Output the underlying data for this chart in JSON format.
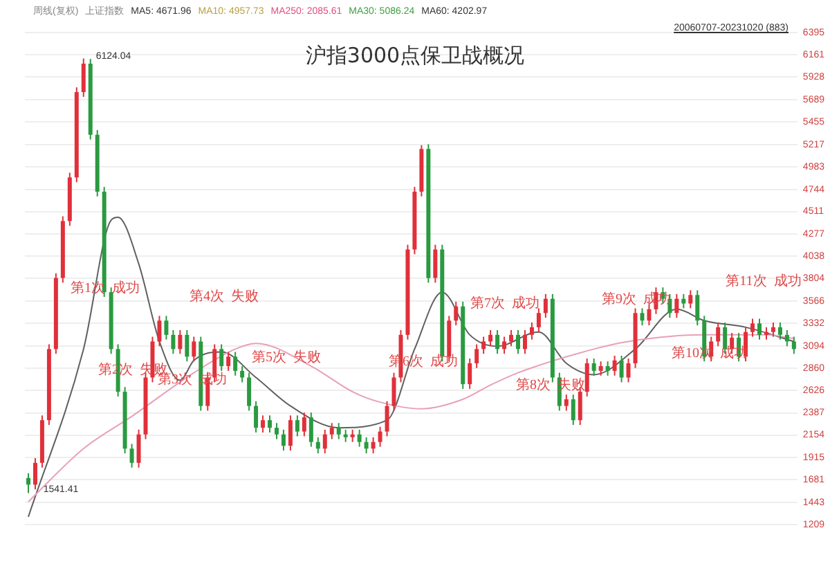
{
  "chart_data": {
    "type": "candlestick",
    "title": "沪指3000点保卫战概况",
    "categories": [
      null,
      null,
      null,
      null,
      null,
      null,
      null,
      null,
      null,
      null,
      null,
      null,
      null,
      null,
      null,
      null,
      null,
      null,
      null,
      null,
      null,
      null,
      null,
      null,
      null,
      null,
      null,
      null,
      null,
      null,
      null,
      null,
      null,
      null,
      null,
      null,
      null,
      null,
      null,
      null,
      null,
      null,
      null,
      null,
      null,
      null,
      null,
      null,
      null,
      null,
      null,
      null,
      null,
      null,
      null,
      null,
      null,
      null,
      null,
      null,
      null,
      null,
      null,
      null,
      null,
      null,
      null,
      null,
      null,
      null,
      null,
      null,
      null,
      null,
      null,
      null,
      null,
      null,
      null,
      null,
      null,
      null,
      null,
      null,
      null,
      null,
      null,
      null,
      null,
      null,
      null,
      null,
      null,
      null,
      null,
      null,
      null,
      null,
      null,
      null,
      null,
      null,
      null,
      null,
      null,
      null,
      null,
      null,
      null,
      null,
      null,
      null
    ],
    "ohlc": [
      [
        1700,
        1750,
        1541.41,
        1630
      ],
      [
        1630,
        1910,
        1580,
        1860
      ],
      [
        1860,
        2360,
        1810,
        2310
      ],
      [
        2310,
        3110,
        2260,
        3060
      ],
      [
        3060,
        3860,
        3010,
        3810
      ],
      [
        3810,
        4460,
        3760,
        4410
      ],
      [
        4410,
        4920,
        4360,
        4870
      ],
      [
        4870,
        5820,
        4820,
        5770
      ],
      [
        5770,
        6124.04,
        5720,
        6070
      ],
      [
        6070,
        6120,
        5270,
        5320
      ],
      [
        5320,
        5370,
        4670,
        4720
      ],
      [
        4720,
        4770,
        3610,
        3660
      ],
      [
        3660,
        3710,
        3010,
        3060
      ],
      [
        3060,
        3110,
        2560,
        2610
      ],
      [
        2610,
        2660,
        1960,
        2010
      ],
      [
        2010,
        2060,
        1810,
        1860
      ],
      [
        1860,
        2210,
        1810,
        2160
      ],
      [
        2160,
        2810,
        2110,
        2760
      ],
      [
        2760,
        3190,
        2710,
        3140
      ],
      [
        3140,
        3410,
        3090,
        3360
      ],
      [
        3360,
        3410,
        3160,
        3210
      ],
      [
        3210,
        3260,
        3010,
        3060
      ],
      [
        3060,
        3260,
        3010,
        3210
      ],
      [
        3210,
        3260,
        2930,
        2980
      ],
      [
        2980,
        3190,
        2930,
        3140
      ],
      [
        3140,
        3190,
        2410,
        2460
      ],
      [
        2460,
        2810,
        2410,
        2760
      ],
      [
        2760,
        3110,
        2710,
        3060
      ],
      [
        3060,
        3110,
        2830,
        2880
      ],
      [
        2880,
        3030,
        2830,
        2980
      ],
      [
        2980,
        3030,
        2780,
        2830
      ],
      [
        2830,
        2880,
        2710,
        2760
      ],
      [
        2760,
        2810,
        2410,
        2460
      ],
      [
        2460,
        2510,
        2180,
        2230
      ],
      [
        2230,
        2360,
        2180,
        2310
      ],
      [
        2310,
        2360,
        2180,
        2230
      ],
      [
        2230,
        2280,
        2110,
        2160
      ],
      [
        2160,
        2210,
        1990,
        2040
      ],
      [
        2040,
        2360,
        1990,
        2310
      ],
      [
        2310,
        2360,
        2140,
        2190
      ],
      [
        2190,
        2390,
        2140,
        2340
      ],
      [
        2340,
        2390,
        2030,
        2080
      ],
      [
        2080,
        2130,
        1960,
        2010
      ],
      [
        2010,
        2210,
        1960,
        2160
      ],
      [
        2160,
        2280,
        2110,
        2230
      ],
      [
        2230,
        2280,
        2110,
        2160
      ],
      [
        2160,
        2210,
        2080,
        2130
      ],
      [
        2130,
        2210,
        2080,
        2160
      ],
      [
        2160,
        2210,
        2030,
        2080
      ],
      [
        2080,
        2130,
        1960,
        2010
      ],
      [
        2010,
        2130,
        1960,
        2080
      ],
      [
        2080,
        2240,
        2030,
        2190
      ],
      [
        2190,
        2510,
        2140,
        2460
      ],
      [
        2460,
        2810,
        2410,
        2760
      ],
      [
        2760,
        3260,
        2710,
        3210
      ],
      [
        3210,
        4160,
        3160,
        4110
      ],
      [
        4110,
        4770,
        4060,
        4720
      ],
      [
        4720,
        5210,
        4670,
        5170
      ],
      [
        5170,
        5220,
        3760,
        3810
      ],
      [
        3810,
        4160,
        3760,
        4110
      ],
      [
        4110,
        4160,
        2930,
        2980
      ],
      [
        2980,
        3410,
        2930,
        3360
      ],
      [
        3360,
        3560,
        3310,
        3510
      ],
      [
        3510,
        3560,
        2640,
        2690
      ],
      [
        2690,
        2960,
        2640,
        2910
      ],
      [
        2910,
        3110,
        2860,
        3060
      ],
      [
        3060,
        3190,
        3010,
        3140
      ],
      [
        3140,
        3260,
        3090,
        3210
      ],
      [
        3210,
        3260,
        3010,
        3060
      ],
      [
        3060,
        3190,
        3010,
        3140
      ],
      [
        3140,
        3260,
        3090,
        3210
      ],
      [
        3210,
        3260,
        3010,
        3060
      ],
      [
        3060,
        3260,
        3010,
        3210
      ],
      [
        3210,
        3340,
        3160,
        3290
      ],
      [
        3290,
        3490,
        3240,
        3440
      ],
      [
        3440,
        3640,
        3390,
        3590
      ],
      [
        3590,
        3640,
        2710,
        2760
      ],
      [
        2760,
        2810,
        2410,
        2460
      ],
      [
        2460,
        2580,
        2410,
        2530
      ],
      [
        2530,
        2580,
        2260,
        2310
      ],
      [
        2310,
        2660,
        2260,
        2610
      ],
      [
        2610,
        2960,
        2560,
        2910
      ],
      [
        2910,
        2960,
        2780,
        2830
      ],
      [
        2830,
        2930,
        2780,
        2880
      ],
      [
        2880,
        2930,
        2780,
        2830
      ],
      [
        2830,
        2990,
        2780,
        2940
      ],
      [
        2940,
        2990,
        2710,
        2760
      ],
      [
        2760,
        2960,
        2710,
        2910
      ],
      [
        2910,
        3490,
        2860,
        3440
      ],
      [
        3440,
        3490,
        3310,
        3360
      ],
      [
        3360,
        3530,
        3310,
        3480
      ],
      [
        3480,
        3710,
        3430,
        3660
      ],
      [
        3660,
        3710,
        3540,
        3590
      ],
      [
        3590,
        3640,
        3390,
        3440
      ],
      [
        3440,
        3640,
        3390,
        3590
      ],
      [
        3590,
        3640,
        3490,
        3540
      ],
      [
        3540,
        3680,
        3490,
        3630
      ],
      [
        3630,
        3680,
        3310,
        3360
      ],
      [
        3360,
        3410,
        2930,
        2980
      ],
      [
        2980,
        3190,
        2930,
        3140
      ],
      [
        3140,
        3340,
        3090,
        3290
      ],
      [
        3290,
        3340,
        3010,
        3060
      ],
      [
        3060,
        3230,
        3010,
        3180
      ],
      [
        3180,
        3230,
        2930,
        2980
      ],
      [
        2980,
        3290,
        2930,
        3240
      ],
      [
        3240,
        3380,
        3190,
        3330
      ],
      [
        3330,
        3380,
        3160,
        3210
      ],
      [
        3210,
        3290,
        3160,
        3240
      ],
      [
        3240,
        3340,
        3190,
        3290
      ],
      [
        3290,
        3340,
        3160,
        3210
      ],
      [
        3210,
        3260,
        3090,
        3140
      ],
      [
        3140,
        3190,
        3010,
        3060
      ]
    ],
    "series": [
      {
        "type": "line",
        "color": "#e8a0b8",
        "values": [
          1450,
          null,
          null,
          null,
          null,
          null,
          null,
          null,
          2010,
          null,
          null,
          null,
          null,
          null,
          null,
          2350,
          null,
          null,
          null,
          null,
          null,
          null,
          null,
          null,
          2810,
          null,
          null,
          null,
          null,
          null,
          3060,
          null,
          null,
          3120,
          null,
          null,
          null,
          null,
          null,
          null,
          null,
          2880,
          null,
          null,
          null,
          null,
          null,
          2610,
          null,
          null,
          null,
          2500,
          null,
          null,
          null,
          null,
          null,
          2430,
          null,
          null,
          null,
          null,
          null,
          2530,
          null,
          null,
          null,
          2680,
          null,
          null,
          null,
          2810,
          null,
          null,
          null,
          null,
          null,
          null,
          null,
          null,
          null,
          null,
          3060,
          null,
          null,
          null,
          null,
          3140,
          null,
          null,
          null,
          null,
          null,
          null,
          null,
          null,
          null,
          null,
          3210,
          null,
          null,
          null,
          null,
          null,
          null,
          null,
          null,
          3210,
          null,
          null,
          null,
          3170
        ]
      },
      {
        "type": "line",
        "color": "#606060",
        "values": [
          1290,
          null,
          null,
          null,
          null,
          null,
          null,
          null,
          3060,
          null,
          null,
          null,
          4420,
          4450,
          null,
          null,
          3960,
          null,
          null,
          3140,
          null,
          null,
          2730,
          null,
          2940,
          null,
          null,
          null,
          3030,
          null,
          null,
          null,
          null,
          2760,
          null,
          null,
          null,
          null,
          2460,
          null,
          null,
          null,
          null,
          null,
          null,
          2230,
          null,
          null,
          null,
          null,
          null,
          null,
          2310,
          null,
          null,
          null,
          3060,
          null,
          null,
          null,
          3660,
          null,
          null,
          null,
          3210,
          null,
          null,
          null,
          3090,
          null,
          null,
          null,
          null,
          null,
          3240,
          null,
          null,
          null,
          2910,
          null,
          null,
          null,
          2790,
          null,
          null,
          null,
          null,
          null,
          3060,
          null,
          null,
          null,
          null,
          null,
          3480,
          null,
          null,
          null,
          3360,
          null,
          null,
          null,
          null,
          null,
          3290,
          null,
          null,
          null,
          null,
          null,
          null,
          3140
        ]
      }
    ],
    "ylim": [
      1180,
      6420
    ],
    "yticks": [
      1209,
      1443,
      1681,
      1915,
      2154,
      2387,
      2626,
      2860,
      3094,
      3332,
      3566,
      3804,
      4038,
      4277,
      4511,
      4744,
      4983,
      5217,
      5455,
      5689,
      5928,
      6161,
      6395
    ],
    "grid": "y",
    "legend": false,
    "tick_labels": "y",
    "annotations": [
      "周线(复权)",
      "上证指数",
      "MA5: 4671.96",
      "MA10: 4957.73",
      "MA250: 2085.61",
      "MA30: 5086.24",
      "MA60: 4202.97",
      "20060707-20231020 (883)",
      "6124.04",
      "1541.41",
      "第1次  成功",
      "第2次  失败",
      "第3次  成功",
      "第4次  失败",
      "第5次  失败",
      "第6次  成功",
      "第7次  成功",
      "第8次  失败",
      "第9次  成功",
      "第10次  成功",
      "第11次  成功"
    ]
  }
}
